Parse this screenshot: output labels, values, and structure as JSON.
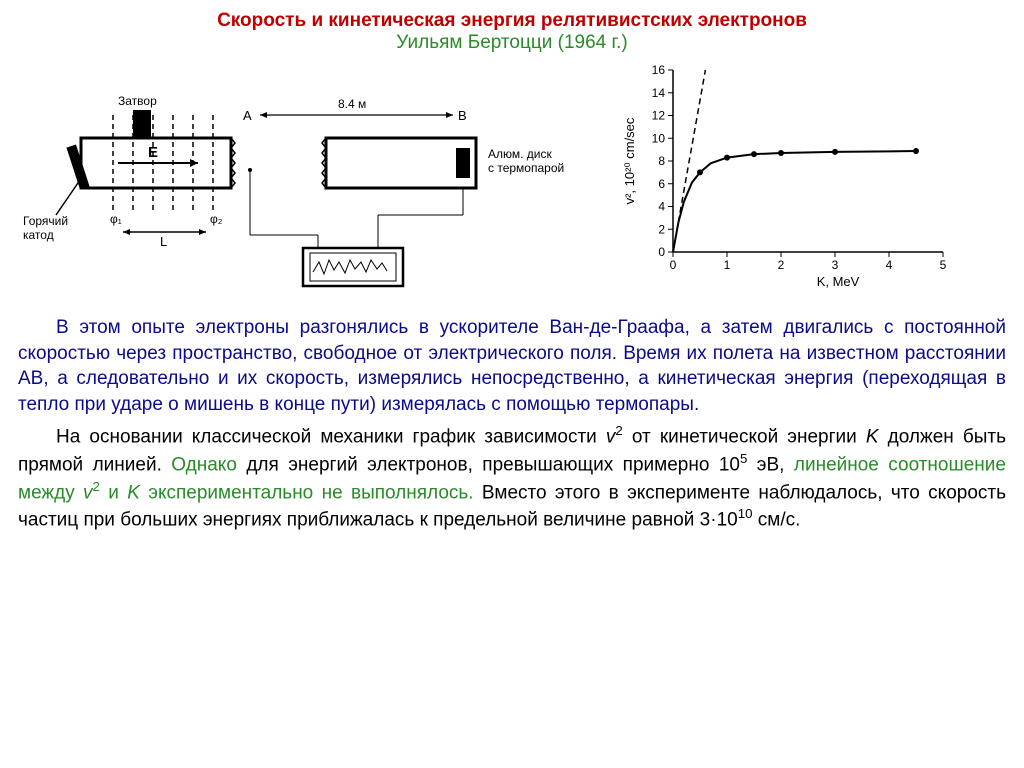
{
  "title": {
    "line1": "Скорость и кинетическая энергия релятивистских электронов",
    "line2": "Уильям Бертоцци (1964 г.)",
    "line1_color": "#c00000",
    "line2_color": "#2a8a2a",
    "fontsize": 19
  },
  "apparatus": {
    "labels": {
      "shutter": "Затвор",
      "hot_cathode": "Горячий\nкатод",
      "field": "E",
      "beam_length": "L",
      "gap_a": "A",
      "gap_b": "B",
      "gap_distance": "8.4 м",
      "disk": "Алюм. диск\nс термопарой",
      "phi1": "φ₁",
      "phi2": "φ₂"
    },
    "stroke": "#000000",
    "label_fontsize": 12
  },
  "chart": {
    "type": "line-scatter",
    "xlabel": "K,  MeV",
    "ylabel": "v²,  10²⁰  cm/sec",
    "xlim": [
      0,
      5
    ],
    "ylim": [
      0,
      16
    ],
    "xticks": [
      0,
      1,
      2,
      3,
      4,
      5
    ],
    "yticks": [
      0,
      2,
      4,
      6,
      8,
      10,
      12,
      14,
      16
    ],
    "tick_fontsize": 12,
    "label_fontsize": 13,
    "axis_color": "#000000",
    "curve_color": "#000000",
    "marker_color": "#000000",
    "marker_radius": 3,
    "curve_points": [
      [
        0.0,
        0.0
      ],
      [
        0.1,
        2.6
      ],
      [
        0.2,
        4.4
      ],
      [
        0.35,
        6.1
      ],
      [
        0.5,
        7.0
      ],
      [
        0.7,
        7.8
      ],
      [
        1.0,
        8.3
      ],
      [
        1.5,
        8.6
      ],
      [
        2.0,
        8.7
      ],
      [
        3.0,
        8.8
      ],
      [
        4.0,
        8.85
      ],
      [
        4.5,
        8.88
      ]
    ],
    "data_points": [
      [
        0.5,
        7.0
      ],
      [
        1.0,
        8.3
      ],
      [
        1.5,
        8.6
      ],
      [
        2.0,
        8.7
      ],
      [
        3.0,
        8.8
      ],
      [
        4.5,
        8.88
      ]
    ],
    "dashed_line": {
      "start": [
        0.0,
        0.0
      ],
      "end": [
        0.6,
        16.0
      ]
    }
  },
  "text": {
    "p1a": "В этом опыте электроны разгонялись в ускорителе Ван-де-Граафа, а затем двигались с постоянной скоростью через пространство, свободное от электрического поля. Время их полета на известном расстоянии АВ, а следовательно и их скорость, измерялись непосредственно, а кинетическая энергия (переходящая в тепло при ударе о мишень в конце пути) измерялась с помощью термопары.",
    "p2_black1": "На основании классической механики график зависимости ",
    "p2_v2": "v",
    "p2_black2": " от кинетической энергии ",
    "p2_k": "K",
    "p2_black3": " должен быть прямой линией. ",
    "p2_green1": "Однако",
    "p2_black4": " для энергий электронов, превышающих примерно 10",
    "p2_exp": "5",
    "p2_black5": " эВ, ",
    "p2_green2": "линейное соотношение между ",
    "p2_green_v2": "v",
    "p2_green3": " и ",
    "p2_green_k": "K",
    "p2_green4": " экспериментально не выполнялось.",
    "p2_black6": " Вместо этого в эксперименте наблюдалось, что скорость частиц при больших энергиях приближалась к предельной величине равной 3·10",
    "p2_exp2": "10",
    "p2_black7": " см/с.",
    "body_color": "#0a0a8a",
    "black_color": "#000000",
    "green_color": "#2a8a2a",
    "fontsize": 19
  }
}
